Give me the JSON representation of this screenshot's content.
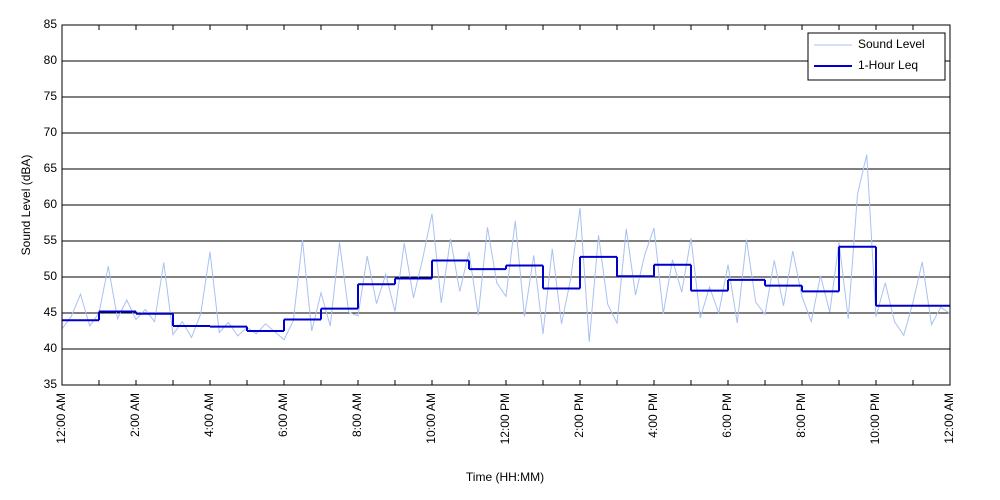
{
  "chart_data": {
    "type": "line",
    "xlabel": "Time (HH:MM)",
    "ylabel": "Sound Level (dBA)",
    "xlim": [
      0,
      24
    ],
    "ylim": [
      35,
      85
    ],
    "yticks": [
      35,
      40,
      45,
      50,
      55,
      60,
      65,
      70,
      75,
      80,
      85
    ],
    "xticks": [
      {
        "value": 0,
        "label": "12:00 AM"
      },
      {
        "value": 2,
        "label": "2:00 AM"
      },
      {
        "value": 4,
        "label": "4:00 AM"
      },
      {
        "value": 6,
        "label": "6:00 AM"
      },
      {
        "value": 8,
        "label": "8:00 AM"
      },
      {
        "value": 10,
        "label": "10:00 AM"
      },
      {
        "value": 12,
        "label": "12:00 PM"
      },
      {
        "value": 14,
        "label": "2:00 PM"
      },
      {
        "value": 16,
        "label": "4:00 PM"
      },
      {
        "value": 18,
        "label": "6:00 PM"
      },
      {
        "value": 20,
        "label": "8:00 PM"
      },
      {
        "value": 22,
        "label": "10:00 PM"
      },
      {
        "value": 24,
        "label": "12:00 AM"
      }
    ],
    "xminorticks": [
      1,
      3,
      5,
      7,
      9,
      11,
      13,
      15,
      17,
      19,
      21,
      23
    ],
    "grid": "y",
    "legend": "upper right",
    "series": [
      {
        "name": "Sound Level",
        "color": "#a9c1f2",
        "style": "line",
        "x": [
          0,
          0.25,
          0.5,
          0.75,
          1,
          1.25,
          1.5,
          1.75,
          2,
          2.25,
          2.5,
          2.75,
          3,
          3.25,
          3.5,
          3.75,
          4,
          4.25,
          4.5,
          4.75,
          5,
          5.25,
          5.5,
          5.75,
          6,
          6.25,
          6.5,
          6.75,
          7,
          7.25,
          7.5,
          7.75,
          8,
          8.25,
          8.5,
          8.75,
          9,
          9.25,
          9.5,
          9.75,
          10,
          10.25,
          10.5,
          10.75,
          11,
          11.25,
          11.5,
          11.75,
          12,
          12.25,
          12.5,
          12.75,
          13,
          13.25,
          13.5,
          13.75,
          14,
          14.25,
          14.5,
          14.75,
          15,
          15.25,
          15.5,
          15.75,
          16,
          16.25,
          16.5,
          16.75,
          17,
          17.25,
          17.5,
          17.75,
          18,
          18.25,
          18.5,
          18.75,
          19,
          19.25,
          19.5,
          19.75,
          20,
          20.25,
          20.5,
          20.75,
          21,
          21.25,
          21.5,
          21.75,
          22,
          22.25,
          22.5,
          22.75,
          23,
          23.25,
          23.5,
          23.75,
          24
        ],
        "values": [
          42.8,
          44.5,
          47.6,
          43.2,
          45.0,
          51.5,
          44.2,
          46.8,
          44.1,
          45.5,
          43.8,
          52.0,
          42.0,
          43.8,
          41.6,
          44.9,
          53.5,
          42.3,
          43.7,
          41.8,
          43.0,
          42.1,
          43.5,
          42.4,
          41.3,
          43.9,
          55.1,
          42.5,
          47.8,
          43.2,
          54.8,
          45.1,
          44.6,
          52.9,
          46.3,
          50.4,
          45.2,
          54.7,
          47.1,
          52.6,
          58.8,
          46.4,
          55.3,
          48.0,
          53.5,
          44.7,
          56.9,
          49.2,
          47.3,
          57.8,
          44.5,
          53.0,
          42.1,
          53.9,
          43.5,
          49.8,
          59.6,
          41.0,
          55.8,
          46.2,
          43.6,
          56.7,
          47.5,
          53.1,
          56.8,
          44.9,
          52.4,
          47.9,
          55.4,
          44.3,
          48.6,
          45.0,
          51.7,
          43.6,
          55.2,
          46.5,
          44.8,
          52.3,
          46.0,
          53.6,
          47.3,
          43.8,
          50.2,
          45.1,
          54.8,
          44.2,
          61.5,
          67.0,
          44.5,
          49.2,
          43.8,
          41.9,
          46.5,
          52.1,
          43.4,
          45.8,
          44.9
        ]
      },
      {
        "name": "1-Hour Leq",
        "color": "#0000cc",
        "style": "step",
        "x": [
          0,
          1,
          2,
          3,
          4,
          5,
          6,
          7,
          8,
          9,
          10,
          11,
          12,
          13,
          14,
          15,
          16,
          17,
          18,
          19,
          20,
          21,
          22,
          23
        ],
        "values": [
          44.0,
          45.2,
          44.9,
          43.2,
          43.1,
          42.5,
          44.1,
          45.6,
          49.0,
          49.8,
          52.3,
          51.1,
          51.6,
          48.4,
          52.8,
          50.1,
          51.7,
          48.1,
          49.6,
          48.8,
          48.0,
          54.2,
          46.0,
          46.0
        ]
      }
    ]
  }
}
